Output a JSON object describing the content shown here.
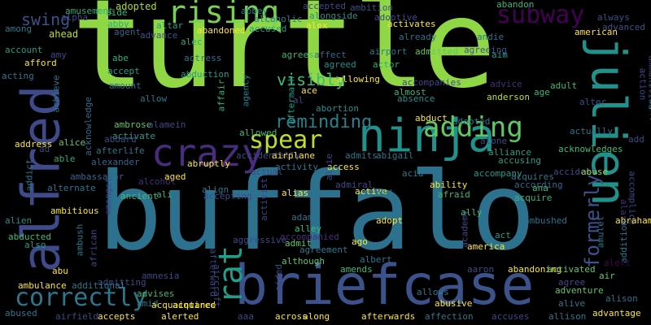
{
  "words": [
    {
      "text": "turtle",
      "color": "#8fd744"
    },
    {
      "text": "buffalo",
      "color": "#2c728e"
    },
    {
      "text": "briefcase",
      "color": "#3b528b"
    },
    {
      "text": "alfred",
      "color": "#3e4a89"
    },
    {
      "text": "julien",
      "color": "#21918c"
    },
    {
      "text": "ninja",
      "color": "#21918c"
    },
    {
      "text": "crazy",
      "color": "#472d7b"
    },
    {
      "text": "rising",
      "color": "#7ad151"
    },
    {
      "text": "subway",
      "color": "#440154"
    },
    {
      "text": "adding",
      "color": "#5ec962"
    },
    {
      "text": "spear",
      "color": "#bddf26"
    },
    {
      "text": "correctly",
      "color": "#2a788e"
    },
    {
      "text": "rat",
      "color": "#1f9e89"
    },
    {
      "text": "formerly",
      "color": "#3b528b"
    },
    {
      "text": "reminding",
      "color": "#26828e"
    },
    {
      "text": "visibly",
      "color": "#3dbc74"
    },
    {
      "text": "swing",
      "color": "#3b528b"
    },
    {
      "text": "ahead",
      "color": "#bddf26"
    },
    {
      "text": "abduct",
      "color": "#1f9e89"
    },
    {
      "text": "adopted",
      "color": "#2a788e"
    },
    {
      "text": "aide",
      "color": "#fde725"
    },
    {
      "text": "alpha",
      "color": "#addc30"
    },
    {
      "text": "amusement",
      "color": "#35b779"
    },
    {
      "text": "among",
      "color": "#3e4a89"
    },
    {
      "text": "abby",
      "color": "#25ab82"
    },
    {
      "text": "agent",
      "color": "#2a788e"
    },
    {
      "text": "advance",
      "color": "#29af7f"
    },
    {
      "text": "altar",
      "color": "#33638d"
    },
    {
      "text": "alec",
      "color": "#3b528b"
    },
    {
      "text": "abandoned",
      "color": "#1fa187"
    },
    {
      "text": "abbey",
      "color": "#25ab82"
    },
    {
      "text": "alcoholic",
      "color": "#fde725"
    },
    {
      "text": "accused",
      "color": "#277f8e"
    },
    {
      "text": "accepted",
      "color": "#25848e"
    },
    {
      "text": "alongside",
      "color": "#1fa187"
    },
    {
      "text": "alex",
      "color": "#3e4989"
    },
    {
      "text": "ambition",
      "color": "#21918c"
    },
    {
      "text": "adoptive",
      "color": "#fde725"
    },
    {
      "text": "abandon",
      "color": "#3b528b"
    },
    {
      "text": "activates",
      "color": "#3e4a89"
    },
    {
      "text": "already",
      "color": "#35b779"
    },
    {
      "text": "always",
      "color": "#fde725"
    },
    {
      "text": "advanced",
      "color": "#2c728e"
    },
    {
      "text": "american",
      "color": "#3b528b"
    },
    {
      "text": "andie",
      "color": "#3b528b"
    },
    {
      "text": "amy",
      "color": "#fde725"
    },
    {
      "text": "account",
      "color": "#2c728e"
    },
    {
      "text": "afford",
      "color": "#3e4989"
    },
    {
      "text": "acting",
      "color": "#1f9e89"
    },
    {
      "text": "abe",
      "color": "#fde725"
    },
    {
      "text": "accept",
      "color": "#2a788e"
    },
    {
      "text": "actress",
      "color": "#29af7f"
    },
    {
      "text": "abduction",
      "color": "#1fa187"
    },
    {
      "text": "agrees",
      "color": "#2a788e"
    },
    {
      "text": "affect",
      "color": "#1f9e89"
    },
    {
      "text": "agreed",
      "color": "#35b779"
    },
    {
      "text": "airport",
      "color": "#31688e"
    },
    {
      "text": "actor",
      "color": "#21918c"
    },
    {
      "text": "admitted",
      "color": "#2a788e"
    },
    {
      "text": "agreeing",
      "color": "#29af7f"
    },
    {
      "text": "aim",
      "color": "#5ec962"
    },
    {
      "text": "amount",
      "color": "#3b528b"
    },
    {
      "text": "allow",
      "color": "#1f9e89"
    },
    {
      "text": "allowing",
      "color": "#2c728e"
    },
    {
      "text": "ace",
      "color": "#2a788e"
    },
    {
      "text": "al",
      "color": "#fde725"
    },
    {
      "text": "abortion",
      "color": "#fde725"
    },
    {
      "text": "accompanies",
      "color": "#3e4a89"
    },
    {
      "text": "almost",
      "color": "#21918c"
    },
    {
      "text": "absence",
      "color": "#3e4989"
    },
    {
      "text": "advice",
      "color": "#35b779"
    },
    {
      "text": "anderson",
      "color": "#21918c"
    },
    {
      "text": "adult",
      "color": "#472d7b"
    },
    {
      "text": "age",
      "color": "#bddf26"
    },
    {
      "text": "alter",
      "color": "#3dbc74"
    },
    {
      "text": "ammunition",
      "color": "#35b779"
    },
    {
      "text": "action",
      "color": "#3e4a89"
    },
    {
      "text": "add",
      "color": "#3e4a89"
    },
    {
      "text": "alright",
      "color": "#3e4989"
    },
    {
      "text": "alan",
      "color": "#3e4a89"
    },
    {
      "text": "achieve",
      "color": "#1fa187"
    },
    {
      "text": "acknowledge",
      "color": "#2a788e"
    },
    {
      "text": "address",
      "color": "#31688e"
    },
    {
      "text": "ad",
      "color": "#fde725"
    },
    {
      "text": "alice",
      "color": "#3e4989"
    },
    {
      "text": "able",
      "color": "#5ec962"
    },
    {
      "text": "addict",
      "color": "#25ab82"
    },
    {
      "text": "affair",
      "color": "#2a788e"
    },
    {
      "text": "aftermath",
      "color": "#35b779"
    },
    {
      "text": "agency",
      "color": "#1fa187"
    },
    {
      "text": "ambrose",
      "color": "#26828e"
    },
    {
      "text": "alamein",
      "color": "#5ec962"
    },
    {
      "text": "activate",
      "color": "#3e4989"
    },
    {
      "text": "aboard",
      "color": "#1f9e89"
    },
    {
      "text": "accidentally",
      "color": "#3e4a89"
    },
    {
      "text": "airplane",
      "color": "#3e4a89"
    },
    {
      "text": "allowed",
      "color": "#fde725"
    },
    {
      "text": "allie",
      "color": "#3dbc74"
    },
    {
      "text": "access",
      "color": "#3e4989"
    },
    {
      "text": "admits",
      "color": "#fde725"
    },
    {
      "text": "abigail",
      "color": "#2a788e"
    },
    {
      "text": "alone",
      "color": "#2a788e"
    },
    {
      "text": "alliance",
      "color": "#3e4989"
    },
    {
      "text": "accusing",
      "color": "#1fa187"
    },
    {
      "text": "acknowledges",
      "color": "#1fa187"
    },
    {
      "text": "actually",
      "color": "#3dbc74"
    },
    {
      "text": "alexander",
      "color": "#2c728e"
    },
    {
      "text": "afterlife",
      "color": "#31688e"
    },
    {
      "text": "abruptly",
      "color": "#2a788e"
    },
    {
      "text": "activity",
      "color": "#fde725"
    },
    {
      "text": "actual",
      "color": "#2a788e"
    },
    {
      "text": "acid",
      "color": "#3e4a89"
    },
    {
      "text": "accompany",
      "color": "#2a788e"
    },
    {
      "text": "admiral",
      "color": "#1f9e89"
    },
    {
      "text": "ambassador",
      "color": "#3e4989"
    },
    {
      "text": "aged",
      "color": "#31688e"
    },
    {
      "text": "alcohol",
      "color": "#fde725"
    },
    {
      "text": "align",
      "color": "#472d7b"
    },
    {
      "text": "ali",
      "color": "#2a788e"
    },
    {
      "text": "accepting",
      "color": "#35b779"
    },
    {
      "text": "alternate",
      "color": "#3e4a89"
    },
    {
      "text": "ancient",
      "color": "#2a788e"
    },
    {
      "text": "amongst",
      "color": "#3dbc74"
    },
    {
      "text": "alias",
      "color": "#3e4989"
    },
    {
      "text": "activist",
      "color": "#fde725"
    },
    {
      "text": "active",
      "color": "#3e4989"
    },
    {
      "text": "aid",
      "color": "#fde725"
    },
    {
      "text": "ability",
      "color": "#2a788e"
    },
    {
      "text": "afraid",
      "color": "#fde725"
    },
    {
      "text": "according",
      "color": "#3dbc74"
    },
    {
      "text": "ana",
      "color": "#31688e"
    },
    {
      "text": "acquire",
      "color": "#3dbc74"
    },
    {
      "text": "acquires",
      "color": "#35b779"
    },
    {
      "text": "accident",
      "color": "#2a788e"
    },
    {
      "text": "abuse",
      "color": "#3e4a89"
    },
    {
      "text": "accomplice",
      "color": "#8fd744"
    },
    {
      "text": "alarm",
      "color": "#3e4989"
    },
    {
      "text": "abraham",
      "color": "#472d7b"
    },
    {
      "text": "alien",
      "color": "#fde725"
    },
    {
      "text": "ambitious",
      "color": "#21918c"
    },
    {
      "text": "abducted",
      "color": "#fde725"
    },
    {
      "text": "also",
      "color": "#3dbc74"
    },
    {
      "text": "ambush",
      "color": "#1f9e89"
    },
    {
      "text": "african",
      "color": "#2a788e"
    },
    {
      "text": "aggressive",
      "color": "#3e4989"
    },
    {
      "text": "adam",
      "color": "#3e4989"
    },
    {
      "text": "alley",
      "color": "#2c728e"
    },
    {
      "text": "accompanied",
      "color": "#3dbc74"
    },
    {
      "text": "admit",
      "color": "#472d7b"
    },
    {
      "text": "agreement",
      "color": "#5ec962"
    },
    {
      "text": "although",
      "color": "#2a788e"
    },
    {
      "text": "academy",
      "color": "#5ec962"
    },
    {
      "text": "ally",
      "color": "#3e4a89"
    },
    {
      "text": "act",
      "color": "#3dbc74"
    },
    {
      "text": "america",
      "color": "#1f9e89"
    },
    {
      "text": "ago",
      "color": "#fde725"
    },
    {
      "text": "adopt",
      "color": "#fde725"
    },
    {
      "text": "ambushed",
      "color": "#fde725"
    },
    {
      "text": "amulet",
      "color": "#2c728e"
    },
    {
      "text": "addition",
      "color": "#2a788e"
    },
    {
      "text": "alert",
      "color": "#2a788e"
    },
    {
      "text": "air",
      "color": "#440154"
    },
    {
      "text": "agree",
      "color": "#5ec962"
    },
    {
      "text": "abu",
      "color": "#3e4a89"
    },
    {
      "text": "amnesia",
      "color": "#fde725"
    },
    {
      "text": "admitting",
      "color": "#3e4989"
    },
    {
      "text": "advises",
      "color": "#3e4989"
    },
    {
      "text": "abandoning",
      "color": "#3dbc74"
    },
    {
      "text": "aaron",
      "color": "#fde725"
    },
    {
      "text": "albert",
      "color": "#3e4a89"
    },
    {
      "text": "amends",
      "color": "#2a788e"
    },
    {
      "text": "activated",
      "color": "#3dbc74"
    },
    {
      "text": "adventure",
      "color": "#5ec962"
    },
    {
      "text": "ambulance",
      "color": "#5ec962"
    },
    {
      "text": "additional",
      "color": "#fde725"
    },
    {
      "text": "amid",
      "color": "#2a788e"
    },
    {
      "text": "acquired",
      "color": "#2a788e"
    },
    {
      "text": "aided",
      "color": "#fde725"
    },
    {
      "text": "allows",
      "color": "#3e4989"
    },
    {
      "text": "abusive",
      "color": "#2a788e"
    },
    {
      "text": "alive",
      "color": "#fde725"
    },
    {
      "text": "alison",
      "color": "#2a788e"
    },
    {
      "text": "abused",
      "color": "#2c728e"
    },
    {
      "text": "airfield",
      "color": "#2a788e"
    },
    {
      "text": "accepts",
      "color": "#3e4989"
    },
    {
      "text": "acquaintance",
      "color": "#fde725"
    },
    {
      "text": "alerted",
      "color": "#fde725"
    },
    {
      "text": "aircraft",
      "color": "#fde725"
    },
    {
      "text": "aaa",
      "color": "#3e4989"
    },
    {
      "text": "across",
      "color": "#3e4989"
    },
    {
      "text": "along",
      "color": "#fde725"
    },
    {
      "text": "afterwards",
      "color": "#fde725"
    },
    {
      "text": "affection",
      "color": "#fde725"
    },
    {
      "text": "accuses",
      "color": "#2a788e"
    },
    {
      "text": "allison",
      "color": "#3e4a89"
    },
    {
      "text": "advantage",
      "color": "#2a788e"
    },
    {
      "text": "afterward",
      "color": "#fde725"
    },
    {
      "text": "abducts",
      "color": "#3e4989"
    }
  ]
}
